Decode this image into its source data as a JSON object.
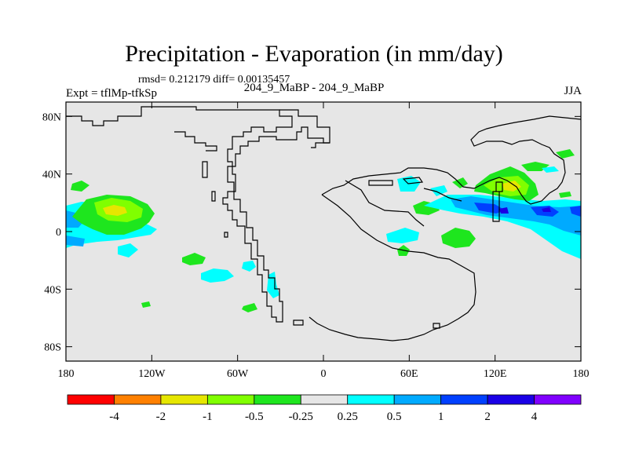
{
  "header": {
    "title": "Precipitation - Evaporation (in mm/day)",
    "stats": "rmsd= 0.212179 diff= 0.00135457",
    "experiment": "Expt = tflMp-tfkSp",
    "period": "204_9_MaBP - 204_9_MaBP",
    "season": "JJA"
  },
  "chart_data": {
    "type": "heatmap",
    "title": "Precipitation - Evaporation (in mm/day)",
    "xlabel": "",
    "ylabel": "",
    "xlim": [
      -180,
      180
    ],
    "ylim": [
      -90,
      90
    ],
    "x_ticks": [
      {
        "value": -180,
        "label": "180"
      },
      {
        "value": -120,
        "label": "120W"
      },
      {
        "value": -60,
        "label": "60W"
      },
      {
        "value": 0,
        "label": "0"
      },
      {
        "value": 60,
        "label": "60E"
      },
      {
        "value": 120,
        "label": "120E"
      },
      {
        "value": 180,
        "label": "180"
      }
    ],
    "y_ticks": [
      {
        "value": 80,
        "label": "80N"
      },
      {
        "value": 40,
        "label": "40N"
      },
      {
        "value": 0,
        "label": "0"
      },
      {
        "value": -40,
        "label": "40S"
      },
      {
        "value": -80,
        "label": "80S"
      }
    ],
    "colorbar": {
      "colors": [
        "#ff0000",
        "#ff8000",
        "#e6e600",
        "#80ff00",
        "#1ee61e",
        "#e6e6e6",
        "#00ffff",
        "#00aaff",
        "#0040ff",
        "#1a00e6",
        "#8000ff"
      ],
      "labels": [
        "-4",
        "-2",
        "-1",
        "-0.5",
        "-0.25",
        "0.25",
        "0.5",
        "1",
        "2",
        "4"
      ]
    },
    "regions": [
      {
        "level": "0.25 to 0.5",
        "color": "#00ffff",
        "lon": -172,
        "lat": 12
      },
      {
        "level": "0.5 to 1",
        "color": "#00aaff",
        "lon": -175,
        "lat": 12
      },
      {
        "level": "-0.25 to -0.5",
        "color": "#1ee61e",
        "lon": -160,
        "lat": 0
      },
      {
        "level": "-0.5 to -1",
        "color": "#80ff00",
        "lon": -145,
        "lat": 15
      },
      {
        "level": "-1 to -2",
        "color": "#e6e600",
        "lon": -144,
        "lat": 15
      },
      {
        "level": "0.25 to 0.5",
        "color": "#00ffff",
        "lon": -80,
        "lat": -32
      },
      {
        "level": "-0.25 to -0.5",
        "color": "#1ee61e",
        "lon": -95,
        "lat": -19
      },
      {
        "level": "0.25 to 0.5",
        "color": "#00ffff",
        "lon": -37,
        "lat": -37
      },
      {
        "level": "-0.25 to -0.5",
        "color": "#1ee61e",
        "lon": 76,
        "lat": 0
      },
      {
        "level": "0.25 to 0.5",
        "color": "#00ffff",
        "lon": 55,
        "lat": -5
      },
      {
        "level": "-0.25 to -0.5",
        "color": "#1ee61e",
        "lon": 72,
        "lat": 17
      },
      {
        "level": "-0.5 to -1",
        "color": "#80ff00",
        "lon": 135,
        "lat": 30
      },
      {
        "level": "-1 to -2",
        "color": "#e6e600",
        "lon": 135,
        "lat": 28
      },
      {
        "level": "0.5 to 1",
        "color": "#00aaff",
        "lon": 125,
        "lat": 17
      },
      {
        "level": "1 to 2",
        "color": "#0040ff",
        "lon": 127,
        "lat": 15
      },
      {
        "level": "2 to 4",
        "color": "#1a00e6",
        "lon": 162,
        "lat": 18
      },
      {
        "level": "0.5 to 1",
        "color": "#00aaff",
        "lon": 168,
        "lat": -4
      }
    ]
  }
}
